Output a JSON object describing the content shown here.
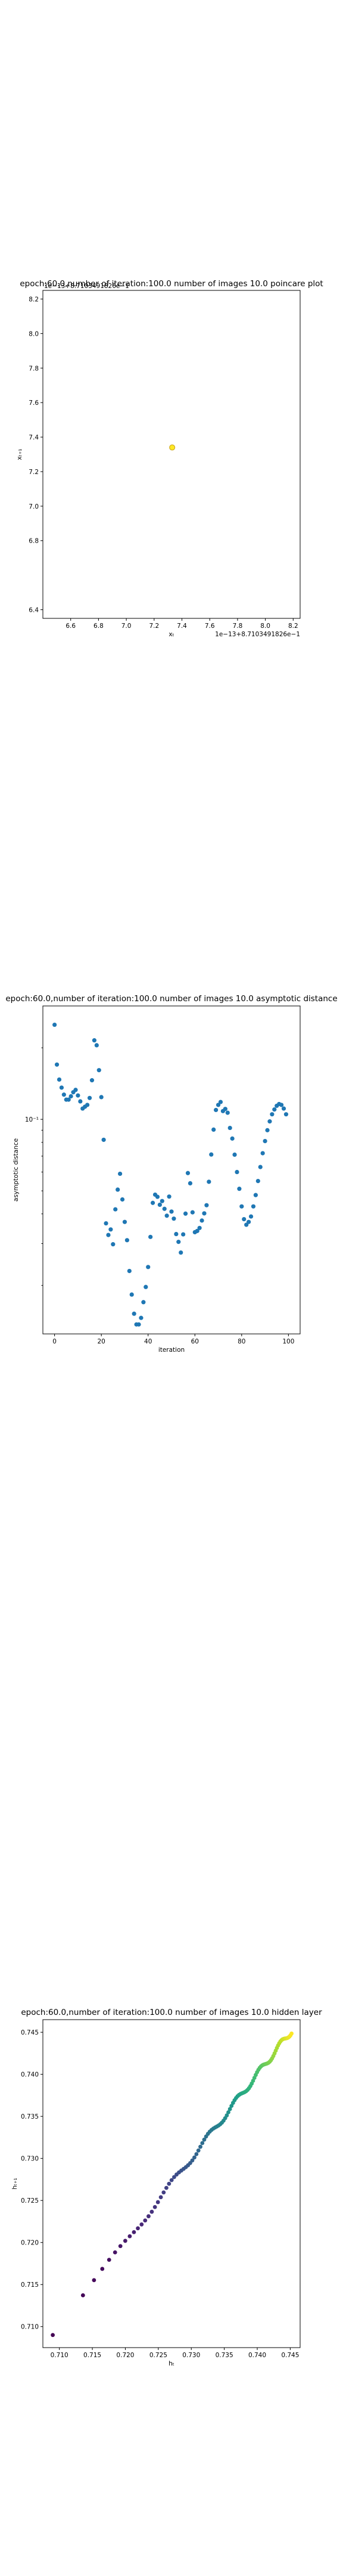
{
  "chart_data": [
    {
      "type": "scatter",
      "title": "epoch:60.0,number of iteration:100.0  number of images 10.0 poincare plot",
      "xlabel": "xₜ",
      "ylabel": "xₜ₊₁",
      "offset_text_y": "1e−13+8.7103491826e−1",
      "offset_text_x": "1e−13+8.7103491826e−1",
      "xlim": [
        6.4,
        8.25
      ],
      "ylim": [
        6.35,
        8.25
      ],
      "xticks": [
        "6.6",
        "6.8",
        "7.0",
        "7.2",
        "7.4",
        "7.6",
        "7.8",
        "8.0",
        "8.2"
      ],
      "yticks": [
        "6.4",
        "6.8",
        "7.0",
        "7.2",
        "7.4",
        "7.6",
        "7.8",
        "8.0",
        "8.2"
      ],
      "points": [
        {
          "x": 7.33,
          "y": 7.34
        }
      ],
      "point_colors": [
        "#fde725",
        "#c9a21e"
      ]
    },
    {
      "type": "scatter",
      "title": "epoch:60.0,number of iteration:100.0  number of images 10.0 asymptotic distance",
      "xlabel": "iteration",
      "ylabel": "asymptotic distance",
      "xlim": [
        -5,
        105
      ],
      "xticks": [
        "0",
        "20",
        "40",
        "60",
        "80",
        "100"
      ],
      "ytick_major": "10⁻¹",
      "log_scale_y": true,
      "color": "#1f77b4",
      "x": [
        0,
        1,
        2,
        3,
        4,
        5,
        6,
        7,
        8,
        9,
        10,
        11,
        12,
        13,
        14,
        15,
        16,
        17,
        18,
        19,
        20,
        21,
        22,
        23,
        24,
        25,
        26,
        27,
        28,
        29,
        30,
        31,
        32,
        33,
        34,
        35,
        36,
        37,
        38,
        39,
        40,
        41,
        42,
        43,
        44,
        45,
        46,
        47,
        48,
        49,
        50,
        51,
        52,
        53,
        54,
        55,
        56,
        57,
        58,
        59,
        60,
        61,
        62,
        63,
        64,
        65,
        66,
        67,
        68,
        69,
        70,
        71,
        72,
        73,
        74,
        75,
        76,
        77,
        78,
        79,
        80,
        81,
        82,
        83,
        84,
        85,
        86,
        87,
        88,
        89,
        90,
        91,
        92,
        93,
        94,
        95,
        96,
        97,
        98,
        99
      ],
      "y": [
        0.25,
        0.17,
        0.147,
        0.136,
        0.127,
        0.121,
        0.121,
        0.125,
        0.13,
        0.133,
        0.126,
        0.119,
        0.111,
        0.113,
        0.115,
        0.123,
        0.146,
        0.215,
        0.205,
        0.161,
        0.124,
        0.082,
        0.0365,
        0.0326,
        0.0344,
        0.0298,
        0.0418,
        0.0506,
        0.059,
        0.046,
        0.037,
        0.031,
        0.023,
        0.0183,
        0.0152,
        0.0137,
        0.0137,
        0.0146,
        0.017,
        0.0197,
        0.0239,
        0.032,
        0.0445,
        0.0482,
        0.0472,
        0.0437,
        0.0453,
        0.042,
        0.0393,
        0.0473,
        0.0409,
        0.0382,
        0.0329,
        0.0305,
        0.0275,
        0.0328,
        0.0401,
        0.0594,
        0.0538,
        0.0406,
        0.0335,
        0.0339,
        0.0349,
        0.0375,
        0.0402,
        0.0435,
        0.0546,
        0.0711,
        0.0905,
        0.1095,
        0.115,
        0.1183,
        0.1083,
        0.1106,
        0.1066,
        0.092,
        0.083,
        0.071,
        0.06,
        0.051,
        0.043,
        0.038,
        0.036,
        0.037,
        0.039,
        0.043,
        0.048,
        0.055,
        0.063,
        0.072,
        0.081,
        0.09,
        0.098,
        0.105,
        0.11,
        0.114,
        0.116,
        0.115,
        0.111,
        0.105
      ],
      "ylim": [
        0.0125,
        0.3
      ]
    },
    {
      "type": "scatter",
      "title": "epoch:60.0,number of iteration:100.0  number of images 10.0 hidden layer",
      "xlabel": "hₜ",
      "ylabel": "hₜ₊₁",
      "xlim": [
        0.7075,
        0.7465
      ],
      "ylim": [
        0.7075,
        0.7465
      ],
      "xticks": [
        "0.710",
        "0.715",
        "0.720",
        "0.725",
        "0.730",
        "0.735",
        "0.740",
        "0.745"
      ],
      "yticks": [
        "0.710",
        "0.715",
        "0.720",
        "0.725",
        "0.730",
        "0.735",
        "0.740",
        "0.745"
      ],
      "colormap": "viridis",
      "x_start": 0.709,
      "x_end": 0.7452,
      "n_points": 100
    }
  ]
}
